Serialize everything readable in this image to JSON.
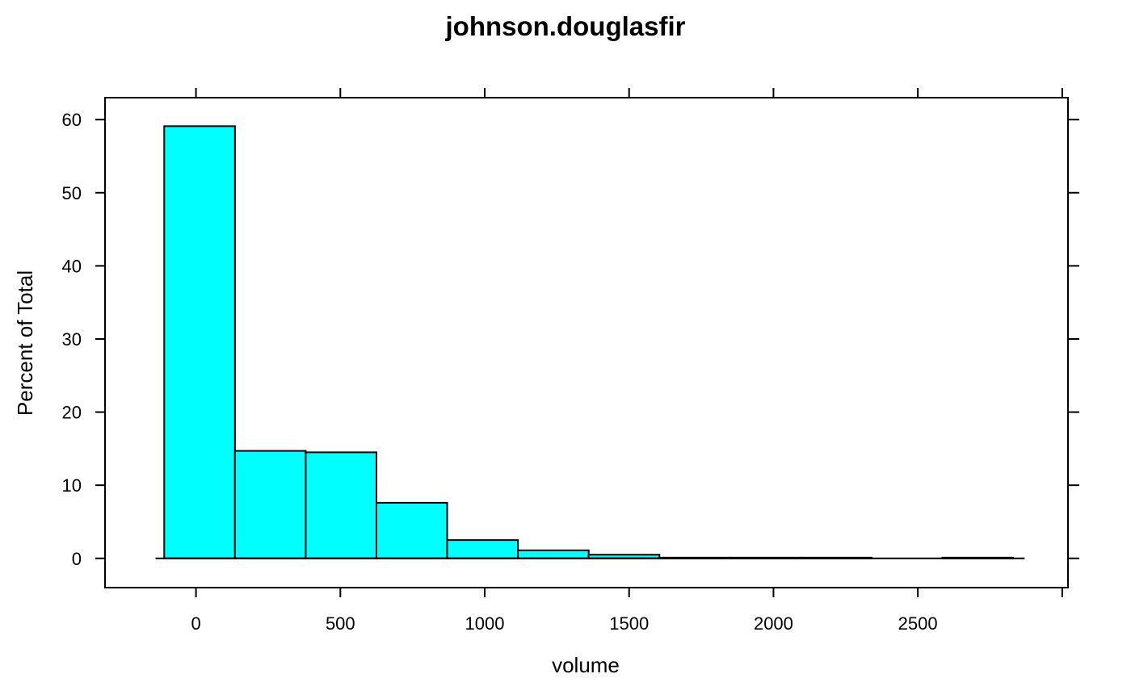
{
  "chart_data": {
    "type": "bar",
    "title": "johnson.douglasfir",
    "xlabel": "volume",
    "ylabel": "Percent of Total",
    "xlim": [
      -315,
      3020
    ],
    "ylim": [
      -4,
      63
    ],
    "x_ticks": [
      0,
      500,
      1000,
      1500,
      2000,
      2500
    ],
    "y_ticks": [
      0,
      10,
      20,
      30,
      40,
      50,
      60
    ],
    "baseline_range": [
      -140,
      2870
    ],
    "bin_edges": [
      -110,
      135,
      380,
      625,
      870,
      1115,
      1360,
      1605,
      1850,
      2095,
      2340,
      2585,
      2830
    ],
    "values": [
      59.1,
      14.7,
      14.5,
      7.6,
      2.5,
      1.1,
      0.5,
      0.1,
      0.1,
      0.1,
      0.0,
      0.1
    ],
    "fill_color": "#00ffff",
    "stroke_color": "#000000",
    "grid": false
  }
}
